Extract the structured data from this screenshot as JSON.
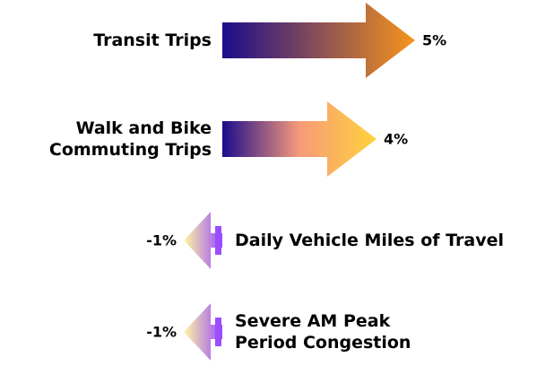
{
  "chart_data": {
    "type": "arrow",
    "categories": [
      "Transit Trips",
      "Walk and Bike Commuting Trips",
      "Daily Vehicle Miles of Travel",
      "Severe AM Peak Period Congestion"
    ],
    "values": [
      5,
      4,
      -1,
      -1
    ],
    "value_labels": [
      "5%",
      "4%",
      "-1%",
      "-1%"
    ],
    "colors": [
      [
        "#1c0c8c",
        "#f7941d"
      ],
      [
        "#1c0c8c",
        "#f79a7a",
        "#ffd23a"
      ],
      [
        "#9b4dff",
        "#fff7a0"
      ],
      [
        "#9b4dff",
        "#fff7a0"
      ]
    ]
  }
}
